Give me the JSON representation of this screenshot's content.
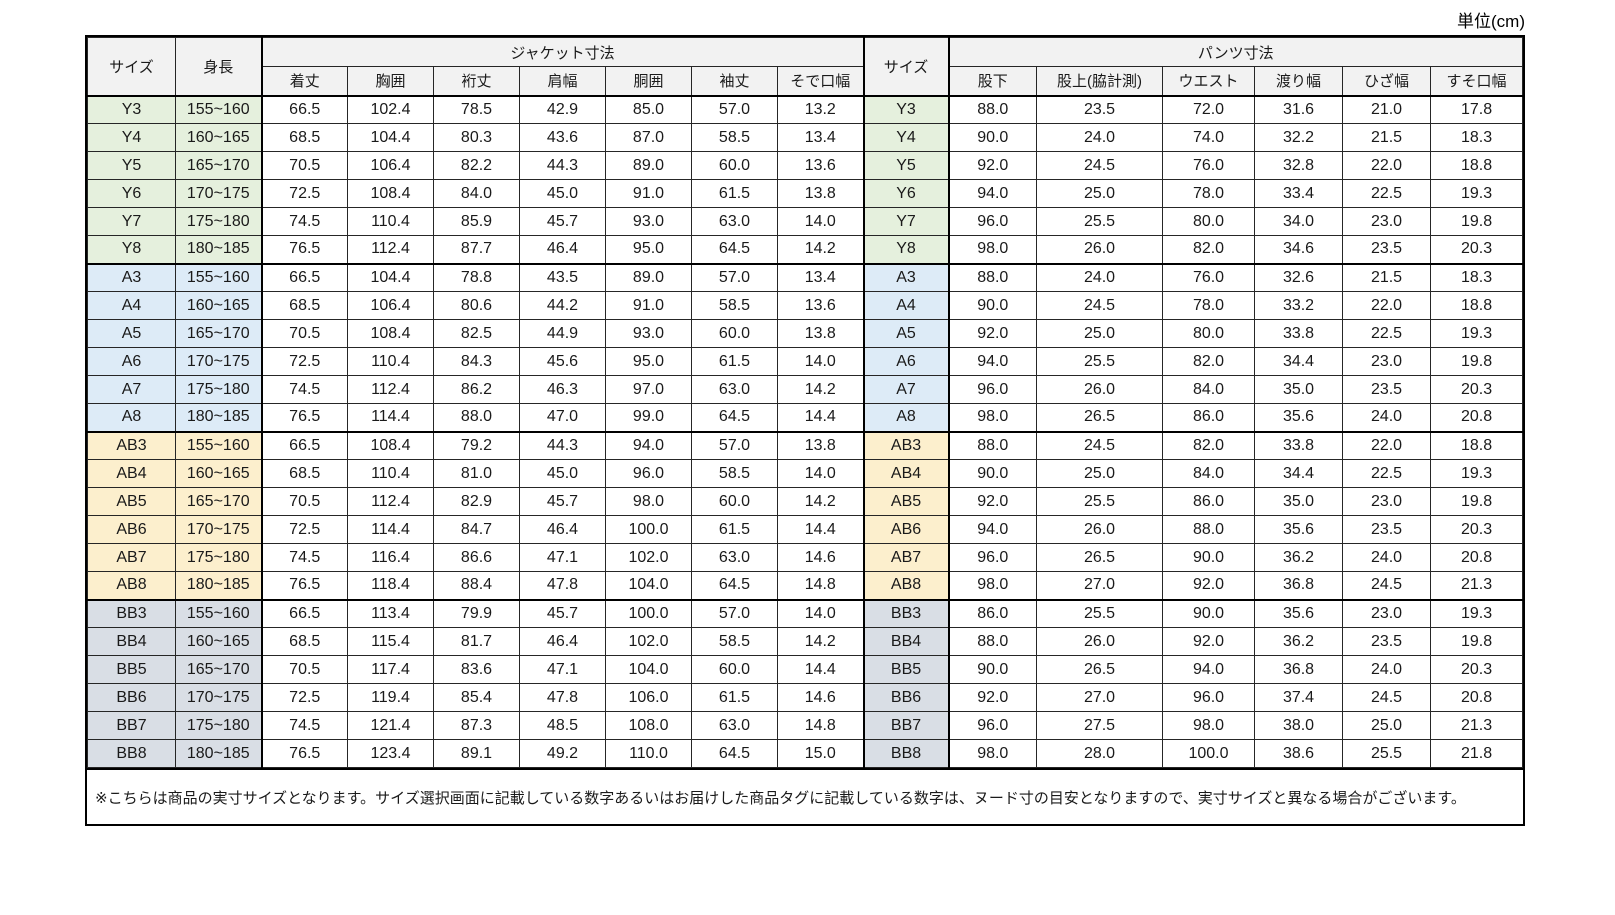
{
  "unit_label": "単位(cm)",
  "header": {
    "size": "サイズ",
    "height": "身長",
    "jacket_group": "ジャケット寸法",
    "pants_group": "パンツ寸法",
    "jacket_columns": [
      "着丈",
      "胸囲",
      "裄丈",
      "肩幅",
      "胴囲",
      "袖丈",
      "そで口幅"
    ],
    "pants_columns": [
      "股下",
      "股上(脇計測)",
      "ウエスト",
      "渡り幅",
      "ひざ幅",
      "すそ口幅"
    ]
  },
  "colors": {
    "header_bg": "#f2f2f2",
    "y_group": "#e5f0dd",
    "a_group": "#ddebf7",
    "ab_group": "#fcefcd",
    "bb_group": "#d9dee5"
  },
  "groups": [
    {
      "name": "Y",
      "color": "#e5f0dd",
      "rows": [
        {
          "size": "Y3",
          "height": "155~160",
          "jacket": [
            "66.5",
            "102.4",
            "78.5",
            "42.9",
            "85.0",
            "57.0",
            "13.2"
          ],
          "pants": [
            "88.0",
            "23.5",
            "72.0",
            "31.6",
            "21.0",
            "17.8"
          ]
        },
        {
          "size": "Y4",
          "height": "160~165",
          "jacket": [
            "68.5",
            "104.4",
            "80.3",
            "43.6",
            "87.0",
            "58.5",
            "13.4"
          ],
          "pants": [
            "90.0",
            "24.0",
            "74.0",
            "32.2",
            "21.5",
            "18.3"
          ]
        },
        {
          "size": "Y5",
          "height": "165~170",
          "jacket": [
            "70.5",
            "106.4",
            "82.2",
            "44.3",
            "89.0",
            "60.0",
            "13.6"
          ],
          "pants": [
            "92.0",
            "24.5",
            "76.0",
            "32.8",
            "22.0",
            "18.8"
          ]
        },
        {
          "size": "Y6",
          "height": "170~175",
          "jacket": [
            "72.5",
            "108.4",
            "84.0",
            "45.0",
            "91.0",
            "61.5",
            "13.8"
          ],
          "pants": [
            "94.0",
            "25.0",
            "78.0",
            "33.4",
            "22.5",
            "19.3"
          ]
        },
        {
          "size": "Y7",
          "height": "175~180",
          "jacket": [
            "74.5",
            "110.4",
            "85.9",
            "45.7",
            "93.0",
            "63.0",
            "14.0"
          ],
          "pants": [
            "96.0",
            "25.5",
            "80.0",
            "34.0",
            "23.0",
            "19.8"
          ]
        },
        {
          "size": "Y8",
          "height": "180~185",
          "jacket": [
            "76.5",
            "112.4",
            "87.7",
            "46.4",
            "95.0",
            "64.5",
            "14.2"
          ],
          "pants": [
            "98.0",
            "26.0",
            "82.0",
            "34.6",
            "23.5",
            "20.3"
          ]
        }
      ]
    },
    {
      "name": "A",
      "color": "#ddebf7",
      "rows": [
        {
          "size": "A3",
          "height": "155~160",
          "jacket": [
            "66.5",
            "104.4",
            "78.8",
            "43.5",
            "89.0",
            "57.0",
            "13.4"
          ],
          "pants": [
            "88.0",
            "24.0",
            "76.0",
            "32.6",
            "21.5",
            "18.3"
          ]
        },
        {
          "size": "A4",
          "height": "160~165",
          "jacket": [
            "68.5",
            "106.4",
            "80.6",
            "44.2",
            "91.0",
            "58.5",
            "13.6"
          ],
          "pants": [
            "90.0",
            "24.5",
            "78.0",
            "33.2",
            "22.0",
            "18.8"
          ]
        },
        {
          "size": "A5",
          "height": "165~170",
          "jacket": [
            "70.5",
            "108.4",
            "82.5",
            "44.9",
            "93.0",
            "60.0",
            "13.8"
          ],
          "pants": [
            "92.0",
            "25.0",
            "80.0",
            "33.8",
            "22.5",
            "19.3"
          ]
        },
        {
          "size": "A6",
          "height": "170~175",
          "jacket": [
            "72.5",
            "110.4",
            "84.3",
            "45.6",
            "95.0",
            "61.5",
            "14.0"
          ],
          "pants": [
            "94.0",
            "25.5",
            "82.0",
            "34.4",
            "23.0",
            "19.8"
          ]
        },
        {
          "size": "A7",
          "height": "175~180",
          "jacket": [
            "74.5",
            "112.4",
            "86.2",
            "46.3",
            "97.0",
            "63.0",
            "14.2"
          ],
          "pants": [
            "96.0",
            "26.0",
            "84.0",
            "35.0",
            "23.5",
            "20.3"
          ]
        },
        {
          "size": "A8",
          "height": "180~185",
          "jacket": [
            "76.5",
            "114.4",
            "88.0",
            "47.0",
            "99.0",
            "64.5",
            "14.4"
          ],
          "pants": [
            "98.0",
            "26.5",
            "86.0",
            "35.6",
            "24.0",
            "20.8"
          ]
        }
      ]
    },
    {
      "name": "AB",
      "color": "#fcefcd",
      "rows": [
        {
          "size": "AB3",
          "height": "155~160",
          "jacket": [
            "66.5",
            "108.4",
            "79.2",
            "44.3",
            "94.0",
            "57.0",
            "13.8"
          ],
          "pants": [
            "88.0",
            "24.5",
            "82.0",
            "33.8",
            "22.0",
            "18.8"
          ]
        },
        {
          "size": "AB4",
          "height": "160~165",
          "jacket": [
            "68.5",
            "110.4",
            "81.0",
            "45.0",
            "96.0",
            "58.5",
            "14.0"
          ],
          "pants": [
            "90.0",
            "25.0",
            "84.0",
            "34.4",
            "22.5",
            "19.3"
          ]
        },
        {
          "size": "AB5",
          "height": "165~170",
          "jacket": [
            "70.5",
            "112.4",
            "82.9",
            "45.7",
            "98.0",
            "60.0",
            "14.2"
          ],
          "pants": [
            "92.0",
            "25.5",
            "86.0",
            "35.0",
            "23.0",
            "19.8"
          ]
        },
        {
          "size": "AB6",
          "height": "170~175",
          "jacket": [
            "72.5",
            "114.4",
            "84.7",
            "46.4",
            "100.0",
            "61.5",
            "14.4"
          ],
          "pants": [
            "94.0",
            "26.0",
            "88.0",
            "35.6",
            "23.5",
            "20.3"
          ]
        },
        {
          "size": "AB7",
          "height": "175~180",
          "jacket": [
            "74.5",
            "116.4",
            "86.6",
            "47.1",
            "102.0",
            "63.0",
            "14.6"
          ],
          "pants": [
            "96.0",
            "26.5",
            "90.0",
            "36.2",
            "24.0",
            "20.8"
          ]
        },
        {
          "size": "AB8",
          "height": "180~185",
          "jacket": [
            "76.5",
            "118.4",
            "88.4",
            "47.8",
            "104.0",
            "64.5",
            "14.8"
          ],
          "pants": [
            "98.0",
            "27.0",
            "92.0",
            "36.8",
            "24.5",
            "21.3"
          ]
        }
      ]
    },
    {
      "name": "BB",
      "color": "#d9dee5",
      "rows": [
        {
          "size": "BB3",
          "height": "155~160",
          "jacket": [
            "66.5",
            "113.4",
            "79.9",
            "45.7",
            "100.0",
            "57.0",
            "14.0"
          ],
          "pants": [
            "86.0",
            "25.5",
            "90.0",
            "35.6",
            "23.0",
            "19.3"
          ]
        },
        {
          "size": "BB4",
          "height": "160~165",
          "jacket": [
            "68.5",
            "115.4",
            "81.7",
            "46.4",
            "102.0",
            "58.5",
            "14.2"
          ],
          "pants": [
            "88.0",
            "26.0",
            "92.0",
            "36.2",
            "23.5",
            "19.8"
          ]
        },
        {
          "size": "BB5",
          "height": "165~170",
          "jacket": [
            "70.5",
            "117.4",
            "83.6",
            "47.1",
            "104.0",
            "60.0",
            "14.4"
          ],
          "pants": [
            "90.0",
            "26.5",
            "94.0",
            "36.8",
            "24.0",
            "20.3"
          ]
        },
        {
          "size": "BB6",
          "height": "170~175",
          "jacket": [
            "72.5",
            "119.4",
            "85.4",
            "47.8",
            "106.0",
            "61.5",
            "14.6"
          ],
          "pants": [
            "92.0",
            "27.0",
            "96.0",
            "37.4",
            "24.5",
            "20.8"
          ]
        },
        {
          "size": "BB7",
          "height": "175~180",
          "jacket": [
            "74.5",
            "121.4",
            "87.3",
            "48.5",
            "108.0",
            "63.0",
            "14.8"
          ],
          "pants": [
            "96.0",
            "27.5",
            "98.0",
            "38.0",
            "25.0",
            "21.3"
          ]
        },
        {
          "size": "BB8",
          "height": "180~185",
          "jacket": [
            "76.5",
            "123.4",
            "89.1",
            "49.2",
            "110.0",
            "64.5",
            "15.0"
          ],
          "pants": [
            "98.0",
            "28.0",
            "100.0",
            "38.6",
            "25.5",
            "21.8"
          ]
        }
      ]
    }
  ],
  "note": "※こちらは商品の実寸サイズとなります。サイズ選択画面に記載している数字あるいはお届けした商品タグに記載している数字は、ヌード寸の目安となりますので、実寸サイズと異なる場合がございます。"
}
